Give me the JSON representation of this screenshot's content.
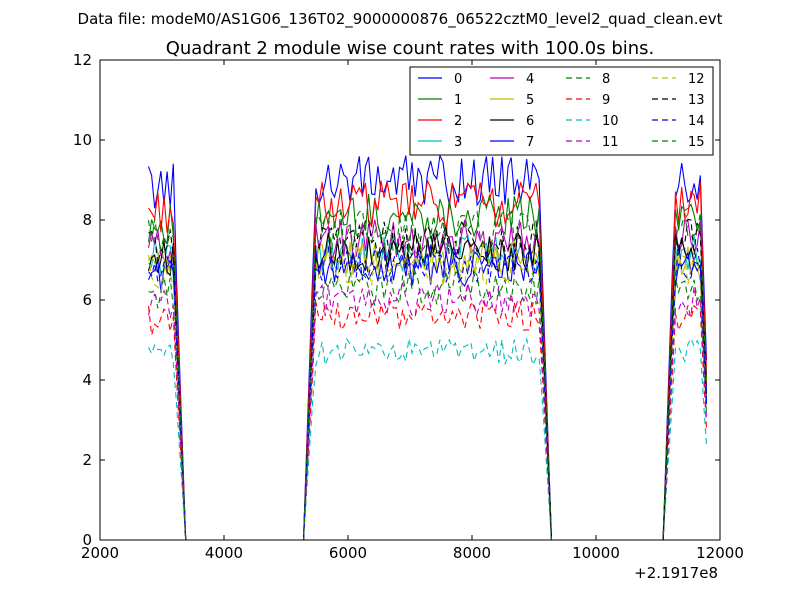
{
  "figure": {
    "suptitle": "Data file: modeM0/AS1G06_136T02_9000000876_06522cztM0_level2_quad_clean.evt",
    "title": "Quadrant 2 module wise count rates with 100.0s bins.",
    "offset_label": "+2.1917e8"
  },
  "chart_data": {
    "type": "line",
    "title": "Quadrant 2 module wise count rates with 100.0s bins.",
    "xlabel": "",
    "ylabel": "",
    "xlim": [
      2000,
      12000
    ],
    "ylim": [
      0,
      12
    ],
    "x_offset": 219170000,
    "xticks": [
      2000,
      4000,
      6000,
      8000,
      10000,
      12000
    ],
    "xtick_labels": [
      "2000",
      "4000",
      "6000",
      "8000",
      "10000",
      "12000"
    ],
    "yticks": [
      0,
      2,
      4,
      6,
      8,
      10,
      12
    ],
    "ytick_labels": [
      "0",
      "2",
      "4",
      "6",
      "8",
      "10",
      "12"
    ],
    "grid": false,
    "legend_position": "top-right",
    "legend_columns": 4,
    "active_windows": [
      {
        "start": 2782,
        "end": 3182,
        "level_factor": 0.98
      },
      {
        "start": 5482,
        "end": 9082,
        "level_factor": 1.0
      },
      {
        "start": 11282,
        "end": 11682,
        "level_factor": 1.0
      }
    ],
    "series": [
      {
        "name": "0",
        "color": "#0000ff",
        "dash": "solid",
        "level": 9.0
      },
      {
        "name": "1",
        "color": "#008000",
        "dash": "solid",
        "level": 8.1
      },
      {
        "name": "2",
        "color": "#ff0000",
        "dash": "solid",
        "level": 8.4
      },
      {
        "name": "3",
        "color": "#00bfbf",
        "dash": "solid",
        "level": 7.2
      },
      {
        "name": "4",
        "color": "#bf00bf",
        "dash": "solid",
        "level": 7.5
      },
      {
        "name": "5",
        "color": "#bfbf00",
        "dash": "solid",
        "level": 7.0
      },
      {
        "name": "6",
        "color": "#000000",
        "dash": "solid",
        "level": 7.2
      },
      {
        "name": "7",
        "color": "#0000ff",
        "dash": "solid",
        "level": 6.8
      },
      {
        "name": "8",
        "color": "#008000",
        "dash": "dashed",
        "level": 6.3
      },
      {
        "name": "9",
        "color": "#ff0000",
        "dash": "dashed",
        "level": 5.6
      },
      {
        "name": "10",
        "color": "#00bfbf",
        "dash": "dashed",
        "level": 4.7
      },
      {
        "name": "11",
        "color": "#bf00bf",
        "dash": "dashed",
        "level": 6.0
      },
      {
        "name": "12",
        "color": "#bfbf00",
        "dash": "dashed",
        "level": 6.8
      },
      {
        "name": "13",
        "color": "#000000",
        "dash": "dashed",
        "level": 7.5
      },
      {
        "name": "14",
        "color": "#0000ff",
        "dash": "dashed",
        "level": 6.9
      },
      {
        "name": "15",
        "color": "#008000",
        "dash": "dashed",
        "level": 7.7
      }
    ]
  }
}
